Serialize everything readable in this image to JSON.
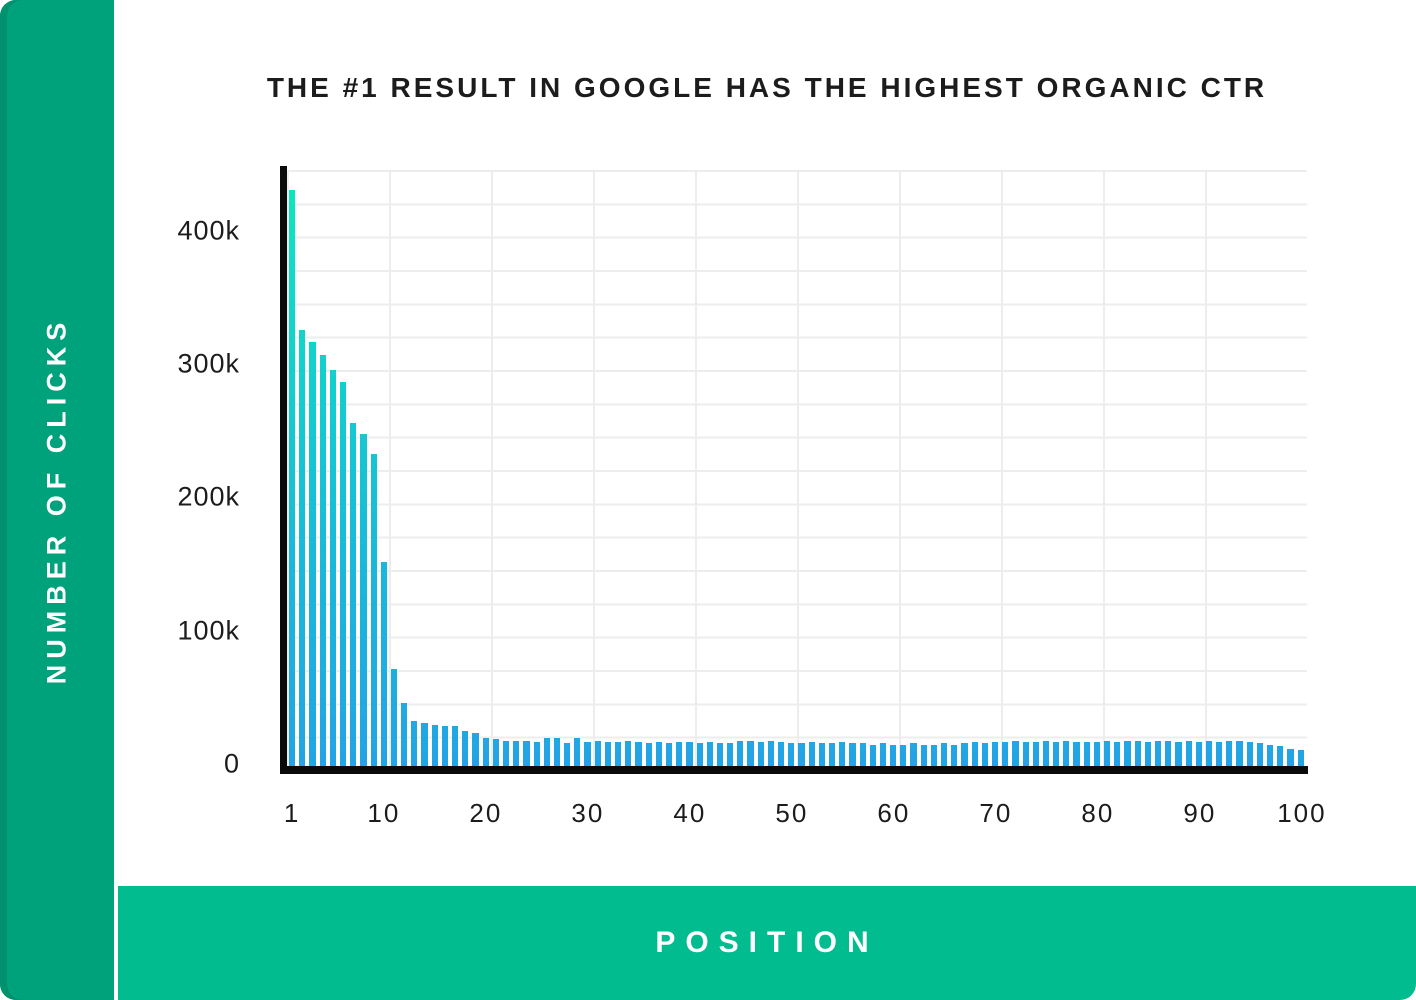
{
  "title": "THE #1 RESULT IN GOOGLE HAS THE HIGHEST ORGANIC CTR",
  "sidebar": {
    "label": "NUMBER OF CLICKS"
  },
  "footer": {
    "label": "POSITION"
  },
  "colors": {
    "sidebar_green": "#00A27C",
    "sidebar_edge_green": "#00926E",
    "footer_green": "#00BC8E",
    "bar_gradient_top": "#0CE7BD",
    "bar_gradient_bottom": "#23A3E5",
    "grid_line": "#EDEDED",
    "axis_black": "#0A0A0A",
    "text_dark": "#1C1C1C",
    "text_white": "#FFFFFF"
  },
  "chart_data": {
    "type": "bar",
    "title": "THE #1 RESULT IN GOOGLE HAS THE HIGHEST ORGANIC CTR",
    "xlabel": "POSITION",
    "ylabel": "NUMBER OF CLICKS",
    "ylim": [
      0,
      450000
    ],
    "grid": {
      "horizontal_step": 25000,
      "vertical_step_positions": 10,
      "visible": true
    },
    "legend": "none",
    "y_ticks": [
      {
        "label": "400k",
        "value": 400000
      },
      {
        "label": "300k",
        "value": 300000
      },
      {
        "label": "200k",
        "value": 200000
      },
      {
        "label": "100k",
        "value": 100000
      },
      {
        "label": "0",
        "value": 0
      }
    ],
    "x_ticks": [
      {
        "label": "1",
        "pos": 1
      },
      {
        "label": "10",
        "pos": 10
      },
      {
        "label": "20",
        "pos": 20
      },
      {
        "label": "30",
        "pos": 30
      },
      {
        "label": "40",
        "pos": 40
      },
      {
        "label": "50",
        "pos": 50
      },
      {
        "label": "60",
        "pos": 60
      },
      {
        "label": "70",
        "pos": 70
      },
      {
        "label": "80",
        "pos": 80
      },
      {
        "label": "90",
        "pos": 90
      },
      {
        "label": "100",
        "pos": 100
      }
    ],
    "x_positions_range": [
      1,
      100
    ],
    "values_clicks": [
      435000,
      330000,
      321000,
      311000,
      300000,
      291000,
      260000,
      252000,
      237000,
      156000,
      76000,
      50000,
      37000,
      35000,
      34000,
      33000,
      33000,
      29000,
      28000,
      24000,
      23000,
      22000,
      22000,
      22000,
      21000,
      24000,
      24000,
      20000,
      24000,
      21000,
      22000,
      21000,
      21000,
      22000,
      21000,
      20000,
      21000,
      20000,
      21000,
      21000,
      20000,
      21000,
      20000,
      20000,
      22000,
      22000,
      21000,
      22000,
      21000,
      20000,
      20000,
      21000,
      20000,
      20000,
      21000,
      20000,
      20000,
      19000,
      20000,
      19000,
      19000,
      20000,
      19000,
      19000,
      20000,
      19000,
      20000,
      21000,
      20000,
      21000,
      21000,
      22000,
      21000,
      21000,
      22000,
      21000,
      22000,
      21000,
      21000,
      21000,
      22000,
      21000,
      22000,
      22000,
      21000,
      22000,
      22000,
      21000,
      22000,
      21000,
      22000,
      21000,
      22000,
      22000,
      21000,
      20000,
      19000,
      18000,
      16000,
      15000
    ]
  }
}
